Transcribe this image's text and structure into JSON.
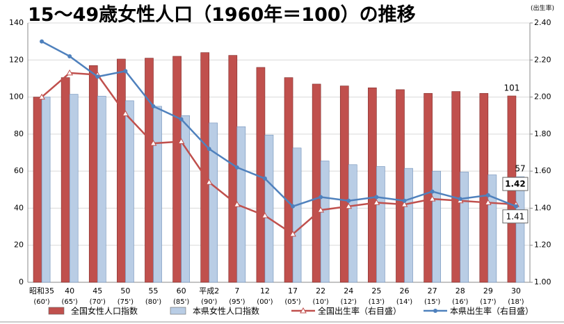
{
  "chart_data": {
    "type": "bar_line",
    "title": "15～49歳女性人口（1960年＝100）の推移",
    "y2_label": "(出生率)",
    "categories": [
      "昭和35",
      "40",
      "45",
      "50",
      "55",
      "60",
      "平成2",
      "7",
      "12",
      "17",
      "22",
      "24",
      "25",
      "26",
      "27",
      "28",
      "29",
      "30"
    ],
    "category_years": [
      "(60')",
      "(65')",
      "(70')",
      "(75')",
      "(80')",
      "(85')",
      "(90')",
      "(95')",
      "(00')",
      "(05')",
      "(10')",
      "(12')",
      "(13')",
      "(14')",
      "(15')",
      "(16')",
      "(17')",
      "(18')"
    ],
    "series": [
      {
        "name": "全国女性人口指数",
        "kind": "bar",
        "color": "#c0504d",
        "values": [
          100,
          110.5,
          117,
          120.5,
          121,
          122,
          124,
          122.5,
          116,
          110.5,
          107,
          106,
          105,
          104,
          102,
          103,
          102,
          100.6
        ],
        "value_labels": [
          null,
          null,
          null,
          null,
          null,
          null,
          null,
          null,
          null,
          null,
          null,
          null,
          null,
          null,
          null,
          null,
          null,
          "101"
        ]
      },
      {
        "name": "本県女性人口指数",
        "kind": "bar",
        "color": "#b9cde5",
        "values": [
          100,
          101.5,
          100.5,
          98,
          95,
          90,
          86,
          84,
          79.5,
          72.5,
          65.5,
          63.5,
          62.5,
          61.5,
          60,
          59.5,
          58,
          57
        ],
        "value_labels": [
          null,
          null,
          null,
          null,
          null,
          null,
          null,
          null,
          null,
          null,
          null,
          null,
          null,
          null,
          null,
          null,
          null,
          "57"
        ]
      },
      {
        "name": "全国出生率（右目盛）",
        "kind": "line",
        "marker": "triangle",
        "axis": "y2",
        "color": "#c0504d",
        "values": [
          2.0,
          2.13,
          2.12,
          1.91,
          1.75,
          1.76,
          1.54,
          1.42,
          1.36,
          1.26,
          1.39,
          1.41,
          1.43,
          1.42,
          1.45,
          1.44,
          1.43,
          1.42
        ],
        "value_labels": [
          null,
          null,
          null,
          null,
          null,
          null,
          null,
          null,
          null,
          null,
          null,
          null,
          null,
          null,
          null,
          null,
          null,
          "1.42"
        ]
      },
      {
        "name": "本県出生率（右目盛）",
        "kind": "line",
        "marker": "circle",
        "axis": "y2",
        "color": "#4f81bd",
        "values": [
          2.3,
          2.22,
          2.11,
          2.14,
          1.95,
          1.88,
          1.72,
          1.62,
          1.56,
          1.41,
          1.46,
          1.44,
          1.46,
          1.44,
          1.49,
          1.45,
          1.47,
          1.41
        ],
        "value_labels": [
          null,
          null,
          null,
          null,
          null,
          null,
          null,
          null,
          null,
          null,
          null,
          null,
          null,
          null,
          null,
          null,
          null,
          "1.41"
        ]
      }
    ],
    "ylim": [
      0,
      140
    ],
    "yticks": [
      0,
      20,
      40,
      60,
      80,
      100,
      120,
      140
    ],
    "y2lim": [
      1.0,
      2.4
    ],
    "y2ticks": [
      {
        "value": 1.0,
        "label": "1.00"
      },
      {
        "value": 1.2,
        "label": "1.20"
      },
      {
        "value": 1.4,
        "label": "1.40"
      },
      {
        "value": 1.6,
        "label": "1.60"
      },
      {
        "value": 1.8,
        "label": "1.80"
      },
      {
        "value": 2.0,
        "label": "2.00"
      },
      {
        "value": 2.2,
        "label": "2.20"
      },
      {
        "value": 2.4,
        "label": "2.40"
      }
    ],
    "grid": true
  }
}
